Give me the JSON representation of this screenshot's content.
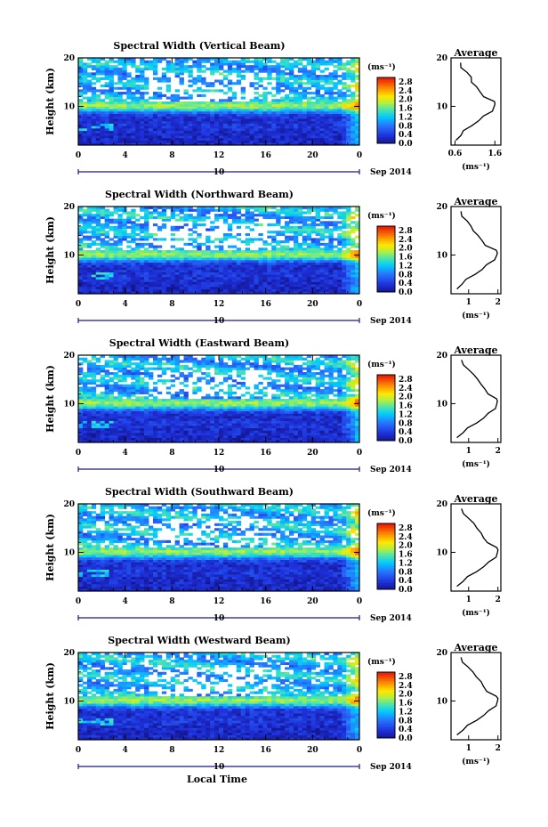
{
  "figure": {
    "x_label": "Local Time",
    "date_day": "10",
    "date_suffix": "Sep 2014"
  },
  "chart_data": [
    {
      "type": "heatmap",
      "title": "Spectral Width (Vertical Beam)",
      "ylabel": "Height (km)",
      "xlabel": "Local Time",
      "xlim": [
        0,
        24
      ],
      "ylim": [
        2,
        20
      ],
      "x_ticks": [
        "0",
        "4",
        "8",
        "12",
        "16",
        "20",
        "0"
      ],
      "y_ticks": [
        "10",
        "20"
      ],
      "colorbar": {
        "unit": "(ms⁻¹)",
        "labels": [
          "0.0",
          "0.4",
          "0.8",
          "1.2",
          "1.6",
          "2.0",
          "2.4",
          "2.8"
        ],
        "range": [
          0,
          3.0
        ]
      },
      "average_profile": {
        "title": "Average",
        "xlabel": "(ms⁻¹)",
        "x_ticks": [
          "0.6",
          "1.6"
        ],
        "xlim": [
          0.5,
          1.75
        ],
        "height_km": [
          3.0,
          4.0,
          5.0,
          6.0,
          7.0,
          8.0,
          9.0,
          10.0,
          10.5,
          11.0,
          12.0,
          13.0,
          14.0,
          15.0,
          16.0,
          17.0,
          18.0,
          19.0
        ],
        "width": [
          0.62,
          0.72,
          0.85,
          1.0,
          1.18,
          1.35,
          1.5,
          1.6,
          1.62,
          1.55,
          1.35,
          1.22,
          1.12,
          1.05,
          0.98,
          0.9,
          0.78,
          0.7
        ]
      }
    },
    {
      "type": "heatmap",
      "title": "Spectral Width (Northward Beam)",
      "ylabel": "Height (km)",
      "xlabel": "Local Time",
      "xlim": [
        0,
        24
      ],
      "ylim": [
        2,
        20
      ],
      "x_ticks": [
        "0",
        "4",
        "8",
        "12",
        "16",
        "20",
        "0"
      ],
      "y_ticks": [
        "10",
        "20"
      ],
      "colorbar": {
        "unit": "(ms⁻¹)",
        "labels": [
          "0.0",
          "0.4",
          "0.8",
          "1.2",
          "1.6",
          "2.0",
          "2.4",
          "2.8"
        ],
        "range": [
          0,
          3.0
        ]
      },
      "average_profile": {
        "title": "Average",
        "xlabel": "(ms⁻¹)",
        "x_ticks": [
          "1",
          "2"
        ],
        "xlim": [
          0.4,
          2.1
        ],
        "height_km": [
          3.0,
          4.0,
          5.0,
          6.0,
          7.0,
          8.0,
          9.0,
          10.0,
          10.5,
          11.0,
          12.0,
          13.0,
          14.0,
          15.0,
          16.0,
          17.0,
          18.0,
          19.0
        ],
        "width": [
          0.6,
          0.75,
          0.95,
          1.2,
          1.45,
          1.65,
          1.85,
          1.98,
          2.0,
          1.9,
          1.6,
          1.45,
          1.3,
          1.2,
          1.05,
          0.95,
          0.8,
          0.7
        ]
      }
    },
    {
      "type": "heatmap",
      "title": "Spectral Width (Eastward Beam)",
      "ylabel": "Height (km)",
      "xlabel": "Local Time",
      "xlim": [
        0,
        24
      ],
      "ylim": [
        2,
        20
      ],
      "x_ticks": [
        "0",
        "4",
        "8",
        "12",
        "16",
        "20",
        "0"
      ],
      "y_ticks": [
        "10",
        "20"
      ],
      "colorbar": {
        "unit": "(ms⁻¹)",
        "labels": [
          "0.0",
          "0.4",
          "0.8",
          "1.2",
          "1.6",
          "2.0",
          "2.4",
          "2.8"
        ],
        "range": [
          0,
          3.0
        ]
      },
      "average_profile": {
        "title": "Average",
        "xlabel": "(ms⁻¹)",
        "x_ticks": [
          "1",
          "2"
        ],
        "xlim": [
          0.4,
          2.1
        ],
        "height_km": [
          3.0,
          4.0,
          5.0,
          6.0,
          7.0,
          8.0,
          9.0,
          10.0,
          10.5,
          11.0,
          12.0,
          13.0,
          14.0,
          15.0,
          16.0,
          17.0,
          18.0,
          19.0
        ],
        "width": [
          0.6,
          0.78,
          1.0,
          1.25,
          1.5,
          1.7,
          1.88,
          1.98,
          2.0,
          1.92,
          1.7,
          1.55,
          1.4,
          1.35,
          1.15,
          1.0,
          0.85,
          0.72
        ]
      }
    },
    {
      "type": "heatmap",
      "title": "Spectral Width (Southward Beam)",
      "ylabel": "Height (km)",
      "xlabel": "Local Time",
      "xlim": [
        0,
        24
      ],
      "ylim": [
        2,
        20
      ],
      "x_ticks": [
        "0",
        "4",
        "8",
        "12",
        "16",
        "20",
        "0"
      ],
      "y_ticks": [
        "10",
        "20"
      ],
      "colorbar": {
        "unit": "(ms⁻¹)",
        "labels": [
          "0.0",
          "0.4",
          "0.8",
          "1.2",
          "1.6",
          "2.0",
          "2.4",
          "2.8"
        ],
        "range": [
          0,
          3.0
        ]
      },
      "average_profile": {
        "title": "Average",
        "xlabel": "(ms⁻¹)",
        "x_ticks": [
          "1",
          "2"
        ],
        "xlim": [
          0.4,
          2.1
        ],
        "height_km": [
          3.0,
          4.0,
          5.0,
          6.0,
          7.0,
          8.0,
          9.0,
          10.0,
          10.5,
          11.0,
          12.0,
          13.0,
          14.0,
          15.0,
          16.0,
          17.0,
          18.0,
          19.0
        ],
        "width": [
          0.6,
          0.78,
          1.0,
          1.25,
          1.5,
          1.72,
          1.9,
          2.0,
          2.02,
          1.92,
          1.68,
          1.5,
          1.4,
          1.32,
          1.15,
          1.0,
          0.85,
          0.72
        ]
      }
    },
    {
      "type": "heatmap",
      "title": "Spectral Width (Westward Beam)",
      "ylabel": "Height (km)",
      "xlabel": "Local Time",
      "xlim": [
        0,
        24
      ],
      "ylim": [
        2,
        20
      ],
      "x_ticks": [
        "0",
        "4",
        "8",
        "12",
        "16",
        "20",
        "0"
      ],
      "y_ticks": [
        "10",
        "20"
      ],
      "colorbar": {
        "unit": "(ms⁻¹)",
        "labels": [
          "0.0",
          "0.4",
          "0.8",
          "1.2",
          "1.6",
          "2.0",
          "2.4",
          "2.8"
        ],
        "range": [
          0,
          3.0
        ]
      },
      "average_profile": {
        "title": "Average",
        "xlabel": "(ms⁻¹)",
        "x_ticks": [
          "1",
          "2"
        ],
        "xlim": [
          0.4,
          2.1
        ],
        "height_km": [
          3.0,
          4.0,
          5.0,
          6.0,
          7.0,
          8.0,
          9.0,
          10.0,
          10.5,
          11.0,
          12.0,
          13.0,
          14.0,
          15.0,
          16.0,
          17.0,
          18.0,
          19.0
        ],
        "width": [
          0.6,
          0.78,
          1.0,
          1.25,
          1.5,
          1.72,
          1.9,
          2.0,
          2.02,
          1.9,
          1.65,
          1.5,
          1.4,
          1.3,
          1.12,
          0.98,
          0.82,
          0.7
        ]
      }
    }
  ]
}
